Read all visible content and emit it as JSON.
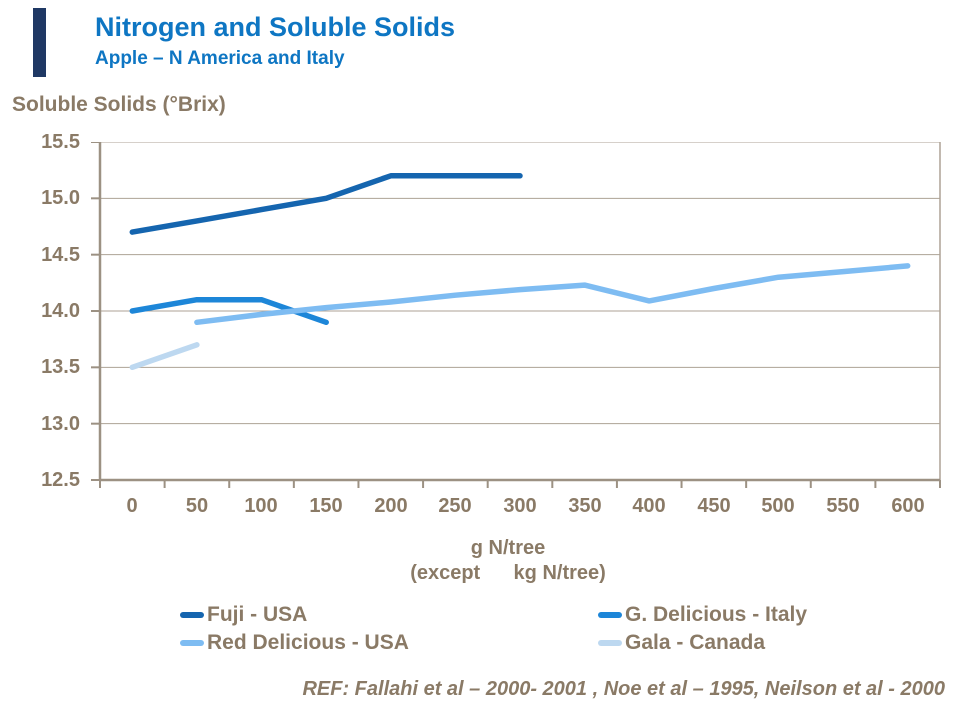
{
  "accent_bar": {
    "color": "#1F3864"
  },
  "header": {
    "title": "Nitrogen and Soluble Solids",
    "subtitle": "Apple – N America and Italy",
    "title_color": "#0E76C3"
  },
  "chart_data": {
    "type": "line",
    "title": "Nitrogen and Soluble Solids",
    "y_axis_title": "Soluble Solids (°Brix)",
    "x_axis_title_line1": "g N/tree",
    "x_axis_title_line2": "(except      kg N/tree)",
    "ylim": [
      12.5,
      15.5
    ],
    "yticks": [
      15.5,
      15.0,
      14.5,
      14.0,
      13.5,
      13.0,
      12.5
    ],
    "ytick_labels": [
      "15.5",
      "15.0",
      "14.5",
      "14.0",
      "13.5",
      "13.0",
      "12.5"
    ],
    "x_categories": [
      0,
      50,
      100,
      150,
      200,
      250,
      300,
      350,
      400,
      450,
      500,
      550,
      600
    ],
    "xtick_labels": [
      "0",
      "50",
      "100",
      "150",
      "200",
      "250",
      "300",
      "350",
      "400",
      "450",
      "500",
      "550",
      "600"
    ],
    "grid": true,
    "legend_position": "bottom",
    "series": [
      {
        "name": "Fuji - USA",
        "color": "#1565AF",
        "x": [
          0,
          50,
          100,
          150,
          200,
          250,
          300
        ],
        "values": [
          14.7,
          14.8,
          14.9,
          15.0,
          15.2,
          15.2,
          15.2
        ]
      },
      {
        "name": "G. Delicious - Italy",
        "color": "#1D86D8",
        "x": [
          0,
          50,
          100,
          150
        ],
        "values": [
          14.0,
          14.1,
          14.1,
          13.9
        ]
      },
      {
        "name": "Red Delicious - USA",
        "color": "#7EBCF2",
        "x": [
          50,
          100,
          150,
          200,
          250,
          300,
          350,
          400,
          450,
          500,
          550,
          600
        ],
        "values": [
          13.9,
          13.97,
          14.03,
          14.08,
          14.14,
          14.19,
          14.23,
          14.09,
          14.2,
          14.3,
          14.35,
          14.4
        ]
      },
      {
        "name": "Gala - Canada",
        "color": "#BDD8F0",
        "x": [
          0,
          50
        ],
        "values": [
          13.5,
          13.7
        ]
      }
    ]
  },
  "legend": {
    "items": [
      {
        "label": "Fuji - USA",
        "color": "#1565AF"
      },
      {
        "label": "Red Delicious - USA",
        "color": "#7EBCF2"
      },
      {
        "label": "G. Delicious - Italy",
        "color": "#1D86D8"
      },
      {
        "label": "Gala - Canada",
        "color": "#BDD8F0"
      }
    ]
  },
  "footer": {
    "ref_text": "REF: Fallahi et al – 2000- 2001 , Noe et al – 1995, Neilson et al - 2000"
  },
  "colors": {
    "title_blue": "#0E76C3",
    "text_brown": "#8A7A66",
    "gridline": "#ADA295",
    "axis": "#9C9183",
    "accent_navy": "#1F3864"
  }
}
